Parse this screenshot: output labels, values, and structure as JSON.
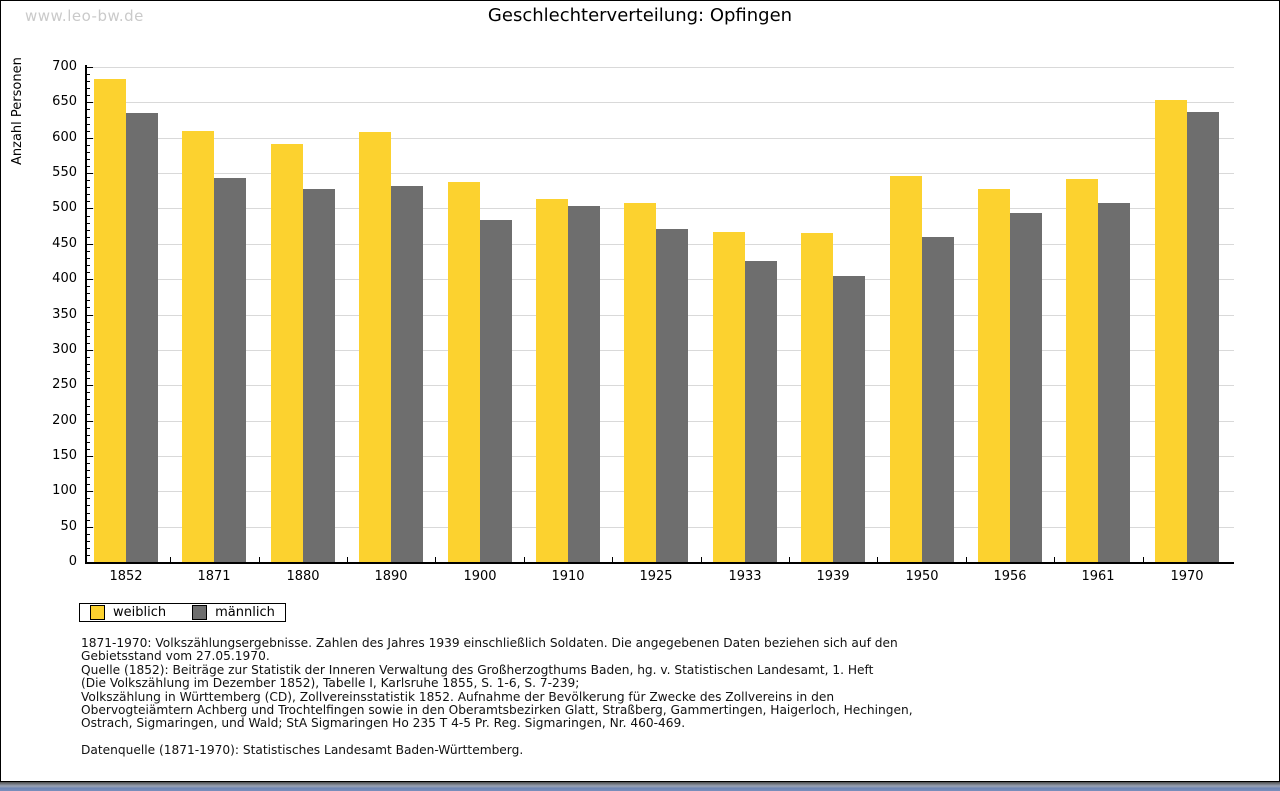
{
  "watermark": "www.leo-bw.de",
  "title": "Geschlechterverteilung: Opfingen",
  "chart_data": {
    "type": "bar",
    "title": "Geschlechterverteilung: Opfingen",
    "xlabel": "",
    "ylabel": "Anzahl Personen",
    "ylim": [
      0,
      700
    ],
    "ytick_step": 50,
    "minor_tick_step": 10,
    "grid": true,
    "legend_position": "bottom-left",
    "categories": [
      "1852",
      "1871",
      "1880",
      "1890",
      "1900",
      "1910",
      "1925",
      "1933",
      "1939",
      "1950",
      "1956",
      "1961",
      "1970"
    ],
    "series": [
      {
        "name": "weiblich",
        "color": "#fcd22f",
        "values": [
          683,
          610,
          591,
          608,
          538,
          514,
          507,
          467,
          465,
          546,
          528,
          541,
          654
        ]
      },
      {
        "name": "männlich",
        "color": "#6e6e6e",
        "values": [
          635,
          543,
          527,
          532,
          483,
          503,
          471,
          425,
          405,
          460,
          493,
          507,
          636
        ]
      }
    ]
  },
  "colors": {
    "weiblich": "#fcd22f",
    "maennlich": "#6e6e6e",
    "gridline": "#d9d9d9",
    "watermark": "#cacaca",
    "bottom_strip_blue": "#7a8fbd"
  },
  "footnotes": [
    "1871-1970: Volkszählungsergebnisse. Zahlen des Jahres 1939 einschließlich Soldaten. Die angegebenen Daten beziehen sich auf den",
    "Gebietsstand vom 27.05.1970.",
    "Quelle (1852): Beiträge zur Statistik der Inneren Verwaltung des Großherzogthums Baden, hg. v. Statistischen Landesamt, 1. Heft",
    "(Die Volkszählung im Dezember 1852), Tabelle I, Karlsruhe 1855, S. 1-6, S. 7-239;",
    "Volkszählung in Württemberg (CD), Zollvereinsstatistik 1852. Aufnahme der Bevölkerung für Zwecke des Zollvereins in den",
    "Obervogteiämtern Achberg und Trochtelfingen sowie in den Oberamtsbezirken Glatt, Straßberg, Gammertingen, Haigerloch, Hechingen,",
    "Ostrach, Sigmaringen, und Wald; StA Sigmaringen Ho 235 T 4-5 Pr. Reg. Sigmaringen, Nr. 460-469.",
    "",
    "Datenquelle (1871-1970): Statistisches Landesamt Baden-Württemberg."
  ]
}
